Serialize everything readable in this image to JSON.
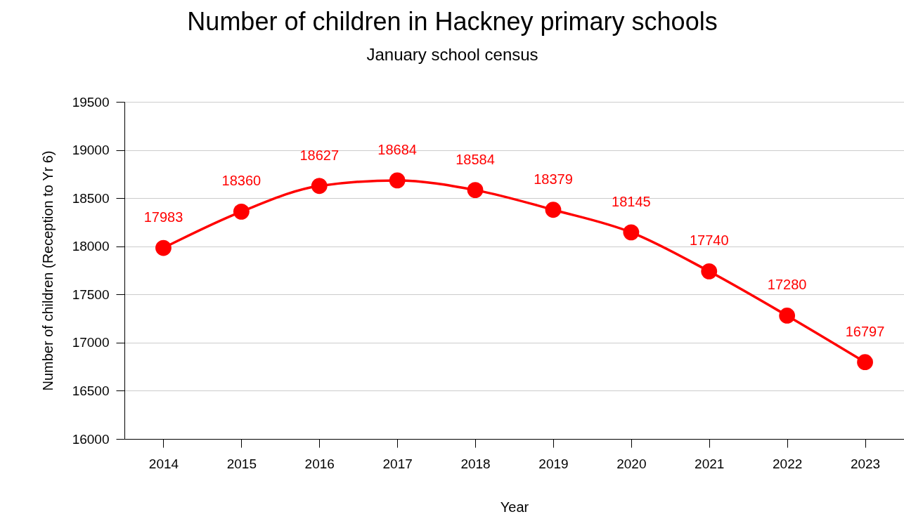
{
  "chart_data": {
    "type": "line",
    "title": "Number of children in Hackney primary schools",
    "subtitle": "January school census",
    "xlabel": "Year",
    "ylabel": "Number of children (Reception to Yr 6)",
    "categories": [
      "2014",
      "2015",
      "2016",
      "2017",
      "2018",
      "2019",
      "2020",
      "2021",
      "2022",
      "2023"
    ],
    "series": [
      {
        "color": "#ff0000",
        "values": [
          17983,
          18360,
          18627,
          18684,
          18584,
          18379,
          18145,
          17740,
          17280,
          16797
        ]
      }
    ],
    "ylim": [
      16000,
      19500
    ],
    "yticks": [
      16000,
      16500,
      17000,
      17500,
      18000,
      18500,
      19000,
      19500
    ],
    "grid": "y",
    "marker": "circle",
    "line_style": "solid",
    "data_labels": true
  }
}
